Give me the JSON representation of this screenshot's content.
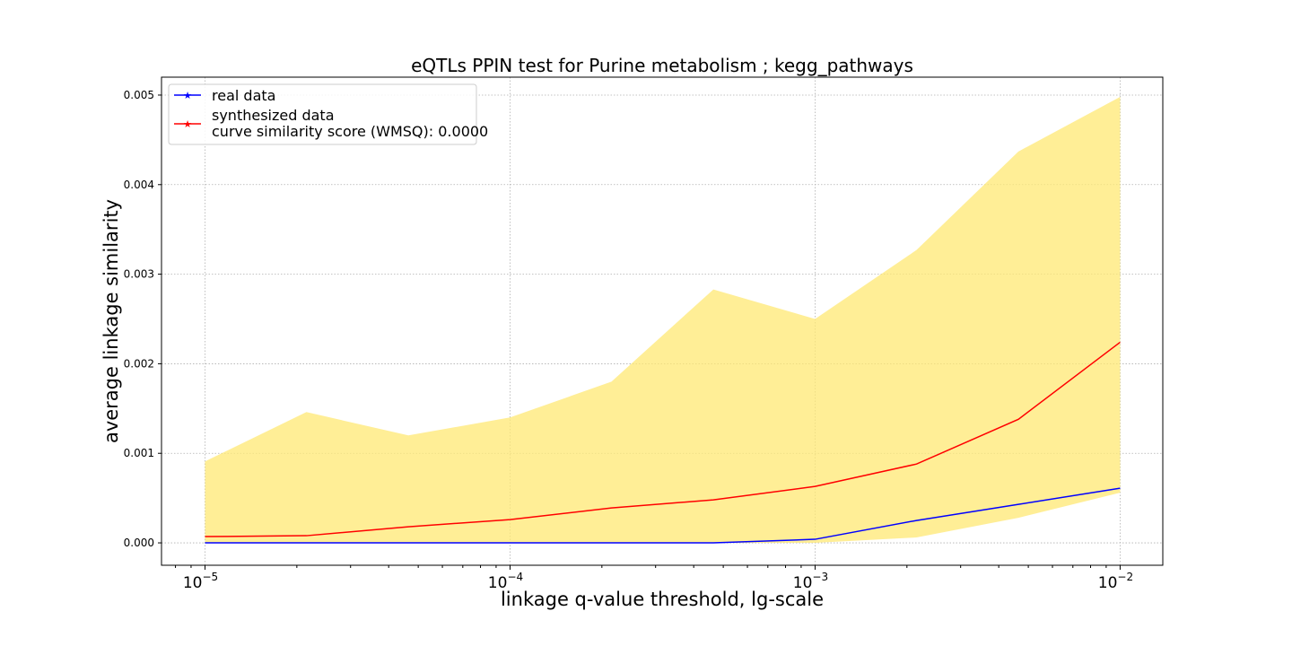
{
  "chart_data": {
    "type": "line",
    "title": "eQTLs PPIN test for Purine metabolism ; kegg_pathways",
    "xlabel": "linkage q-value threshold, lg-scale",
    "ylabel": "average linkage similarity",
    "xscale": "log",
    "xlim": [
      7.2e-06,
      0.0138
    ],
    "ylim": [
      -0.00025,
      0.0052
    ],
    "grid": true,
    "legend_position": "top-left",
    "x": [
      1e-05,
      2.15e-05,
      4.64e-05,
      0.0001,
      0.000215,
      0.000464,
      0.001,
      0.00215,
      0.00464,
      0.01
    ],
    "xticks": [
      {
        "value": 1e-05,
        "base": "10",
        "exp": "−5"
      },
      {
        "value": 0.0001,
        "base": "10",
        "exp": "−4"
      },
      {
        "value": 0.001,
        "base": "10",
        "exp": "−3"
      },
      {
        "value": 0.01,
        "base": "10",
        "exp": "−2"
      }
    ],
    "yticks": [
      {
        "value": 0.0,
        "label": "0.000"
      },
      {
        "value": 0.001,
        "label": "0.001"
      },
      {
        "value": 0.002,
        "label": "0.002"
      },
      {
        "value": 0.003,
        "label": "0.003"
      },
      {
        "value": 0.004,
        "label": "0.004"
      },
      {
        "value": 0.005,
        "label": "0.005"
      }
    ],
    "series": [
      {
        "name": "real data",
        "color": "#0000ff",
        "values": [
          0.0,
          0.0,
          0.0,
          0.0,
          0.0,
          0.0,
          4e-05,
          0.00025,
          0.00043,
          0.00061
        ]
      },
      {
        "name": "synthesized data",
        "color": "#ff0000",
        "values": [
          7e-05,
          8e-05,
          0.00018,
          0.00026,
          0.00039,
          0.00048,
          0.00063,
          0.00088,
          0.00138,
          0.00224
        ]
      }
    ],
    "band": {
      "color": "#ffe873",
      "upper": [
        0.00091,
        0.00146,
        0.0012,
        0.0014,
        0.0018,
        0.00283,
        0.0025,
        0.00327,
        0.00437,
        0.00498
      ],
      "lower": [
        0.0,
        0.0,
        0.0,
        0.0,
        0.0,
        0.0,
        0.0,
        6e-05,
        0.00028,
        0.00056
      ]
    },
    "legend": {
      "entries": [
        {
          "lines": [
            "real data"
          ],
          "color": "#0000ff"
        },
        {
          "lines": [
            "synthesized data",
            "curve similarity score (WMSQ): 0.0000"
          ],
          "color": "#ff0000"
        }
      ]
    }
  }
}
